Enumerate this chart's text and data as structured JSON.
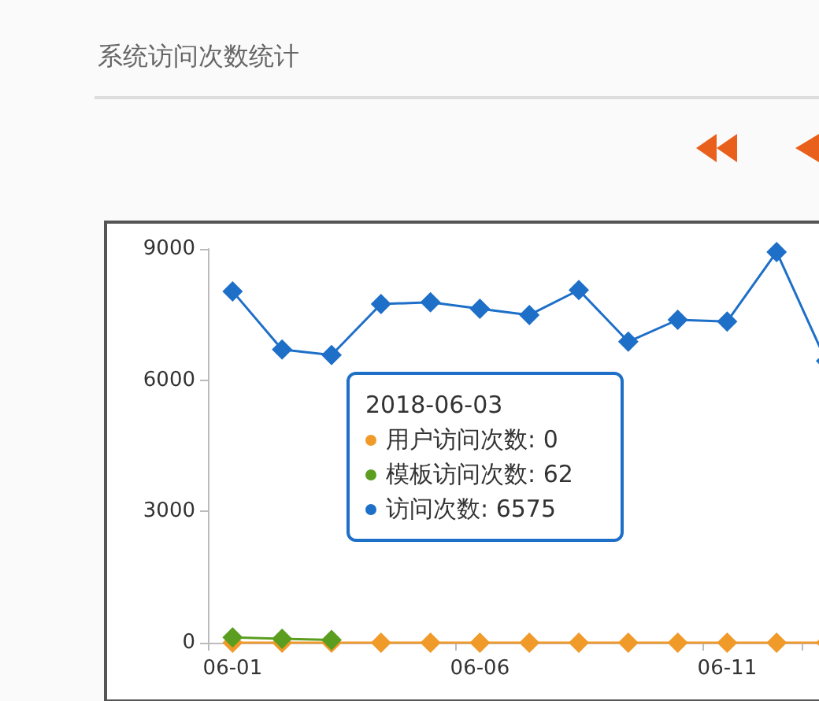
{
  "chart_data": {
    "type": "line",
    "title": "系统访问次数统计",
    "categories": [
      "06-01",
      null,
      null,
      null,
      null,
      "06-06",
      null,
      null,
      null,
      null,
      "06-11",
      null,
      null
    ],
    "series": [
      {
        "color": "#f09a2a",
        "values": [
          0,
          0,
          0,
          0,
          0,
          0,
          0,
          0,
          0,
          0,
          0,
          0,
          0
        ]
      },
      {
        "color": "#5b9e1f",
        "values": [
          120,
          90,
          62,
          null,
          null,
          null,
          null,
          null,
          null,
          null,
          null,
          null,
          null
        ]
      },
      {
        "color": "#1e6fc8",
        "values": [
          8030,
          6700,
          6575,
          7740,
          7780,
          7630,
          7490,
          8060,
          6880,
          7380,
          7340,
          8930,
          6440
        ]
      }
    ],
    "ylim": [
      0,
      9000
    ],
    "yticks": [
      0,
      3000,
      6000,
      9000
    ],
    "grid": false,
    "marker": "diamond",
    "line_style": "solid",
    "annotations": [
      "2018-06-03",
      "用户访问次数: 0",
      "模板访问次数: 62",
      "访问次数: 6575"
    ]
  }
}
